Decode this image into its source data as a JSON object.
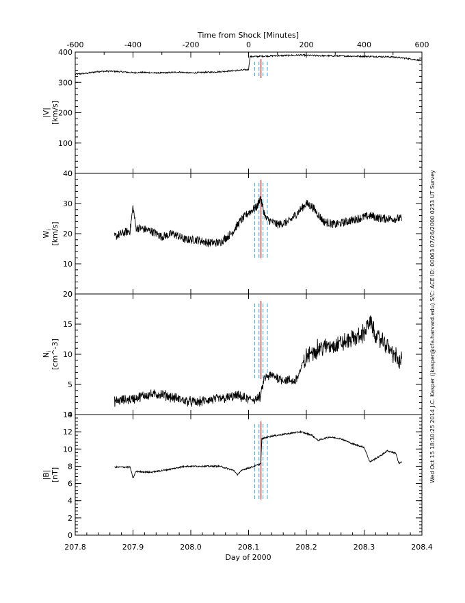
{
  "chart_data": {
    "type": "line",
    "top_axis": {
      "label": "Time from Shock [Minutes]",
      "range": [
        -600,
        600
      ],
      "ticks": [
        -600,
        -400,
        -200,
        0,
        200,
        400,
        600
      ]
    },
    "x_axis": {
      "label": "Day of 2000",
      "range": [
        207.8,
        208.4
      ],
      "ticks": [
        "207.8",
        "207.9",
        "208.0",
        "208.1",
        "208.2",
        "208.3",
        "208.4"
      ]
    },
    "shock_day": 208.1215,
    "dashed_marker_days": [
      208.1105,
      208.118,
      208.125,
      208.1325
    ],
    "side_text": "Wed Oct 15 18:30:25 2014   J.C. Kasper (jkasper@cfa.harvard.edu)   S/C: ACE ID: 00063 07/26/2000   0253 UT Survey",
    "panels": [
      {
        "id": "speed",
        "ylabel_line1": "|V|",
        "ylabel_line2": "[km/s]",
        "ylim": [
          0,
          400
        ],
        "yticks": [
          "0",
          "100",
          "200",
          "300",
          "400"
        ],
        "x_range": [
          -600,
          600
        ],
        "markers_style": "top",
        "knots": [
          [
            -600,
            327
          ],
          [
            -560,
            330
          ],
          [
            -520,
            336
          ],
          [
            -480,
            337
          ],
          [
            -440,
            335
          ],
          [
            -400,
            332
          ],
          [
            -360,
            333
          ],
          [
            -320,
            331
          ],
          [
            -280,
            332
          ],
          [
            -240,
            334
          ],
          [
            -200,
            331
          ],
          [
            -160,
            333
          ],
          [
            -120,
            334
          ],
          [
            -90,
            336
          ],
          [
            -60,
            338
          ],
          [
            -30,
            340
          ],
          [
            -5,
            342
          ],
          [
            0,
            343
          ],
          [
            5,
            385
          ],
          [
            40,
            386
          ],
          [
            100,
            388
          ],
          [
            180,
            390
          ],
          [
            250,
            388
          ],
          [
            320,
            387
          ],
          [
            400,
            386
          ],
          [
            450,
            385
          ],
          [
            500,
            384
          ],
          [
            540,
            380
          ],
          [
            570,
            376
          ],
          [
            600,
            372
          ]
        ]
      },
      {
        "id": "thermal",
        "ylabel_line1": "W",
        "ylabel_sub": "i",
        "ylabel_line2": "[km/s]",
        "ylim": [
          0,
          40
        ],
        "yticks": [
          "0",
          "10",
          "20",
          "30",
          "40"
        ],
        "x_range": [
          207.868,
          208.365
        ],
        "knots": [
          [
            207.868,
            19
          ],
          [
            207.88,
            20
          ],
          [
            207.895,
            21
          ],
          [
            207.9,
            29
          ],
          [
            207.905,
            22
          ],
          [
            207.93,
            21
          ],
          [
            207.95,
            19
          ],
          [
            207.97,
            20
          ],
          [
            207.99,
            18
          ],
          [
            208.01,
            18
          ],
          [
            208.03,
            17
          ],
          [
            208.05,
            17
          ],
          [
            208.07,
            20
          ],
          [
            208.085,
            24
          ],
          [
            208.1,
            27
          ],
          [
            208.115,
            29
          ],
          [
            208.12,
            32
          ],
          [
            208.13,
            25
          ],
          [
            208.15,
            23
          ],
          [
            208.17,
            24
          ],
          [
            208.19,
            28
          ],
          [
            208.2,
            30
          ],
          [
            208.21,
            29
          ],
          [
            208.23,
            24
          ],
          [
            208.25,
            23
          ],
          [
            208.27,
            24
          ],
          [
            208.29,
            25
          ],
          [
            208.31,
            26
          ],
          [
            208.33,
            25
          ],
          [
            208.35,
            25
          ],
          [
            208.365,
            25
          ]
        ]
      },
      {
        "id": "density",
        "ylabel_line1": "N",
        "ylabel_sub": "i",
        "ylabel_line2": "[cm^-3]",
        "ylim": [
          0,
          20
        ],
        "yticks": [
          "0",
          "5",
          "10",
          "15",
          "20"
        ],
        "x_range": [
          207.868,
          208.365
        ],
        "knots": [
          [
            207.868,
            2.2
          ],
          [
            207.9,
            2.6
          ],
          [
            207.92,
            3.2
          ],
          [
            207.95,
            3.4
          ],
          [
            207.97,
            2.8
          ],
          [
            207.99,
            2.3
          ],
          [
            208.01,
            2.0
          ],
          [
            208.03,
            2.4
          ],
          [
            208.06,
            2.7
          ],
          [
            208.08,
            3.1
          ],
          [
            208.1,
            2.5
          ],
          [
            208.115,
            2.6
          ],
          [
            208.121,
            3.0
          ],
          [
            208.127,
            6.0
          ],
          [
            208.14,
            6.5
          ],
          [
            208.16,
            5.8
          ],
          [
            208.18,
            5.5
          ],
          [
            208.185,
            6.3
          ],
          [
            208.2,
            9.5
          ],
          [
            208.22,
            11.0
          ],
          [
            208.25,
            11.5
          ],
          [
            208.28,
            12.5
          ],
          [
            208.3,
            13.5
          ],
          [
            208.31,
            15.5
          ],
          [
            208.32,
            13.0
          ],
          [
            208.34,
            11.5
          ],
          [
            208.355,
            9.5
          ],
          [
            208.362,
            8.5
          ],
          [
            208.365,
            10.0
          ]
        ]
      },
      {
        "id": "field",
        "ylabel_line1": "|B|",
        "ylabel_line2": "[nT]",
        "ylim": [
          0,
          14
        ],
        "yticks": [
          "0",
          "2",
          "4",
          "6",
          "8",
          "10",
          "12",
          "14"
        ],
        "x_range": [
          207.868,
          208.365
        ],
        "knots": [
          [
            207.868,
            7.9
          ],
          [
            207.895,
            7.9
          ],
          [
            207.9,
            6.6
          ],
          [
            207.905,
            7.4
          ],
          [
            207.93,
            7.3
          ],
          [
            207.96,
            7.6
          ],
          [
            207.99,
            8.0
          ],
          [
            208.02,
            8.0
          ],
          [
            208.05,
            8.0
          ],
          [
            208.075,
            7.5
          ],
          [
            208.08,
            7.0
          ],
          [
            208.09,
            7.6
          ],
          [
            208.11,
            8.0
          ],
          [
            208.121,
            8.3
          ],
          [
            208.123,
            11.2
          ],
          [
            208.14,
            11.5
          ],
          [
            208.17,
            11.8
          ],
          [
            208.19,
            12.0
          ],
          [
            208.21,
            11.6
          ],
          [
            208.22,
            11.0
          ],
          [
            208.24,
            11.4
          ],
          [
            208.26,
            11.2
          ],
          [
            208.28,
            10.6
          ],
          [
            208.3,
            10.2
          ],
          [
            208.31,
            8.5
          ],
          [
            208.33,
            9.3
          ],
          [
            208.34,
            9.8
          ],
          [
            208.355,
            9.5
          ],
          [
            208.36,
            8.3
          ],
          [
            208.365,
            8.5
          ]
        ]
      }
    ]
  }
}
